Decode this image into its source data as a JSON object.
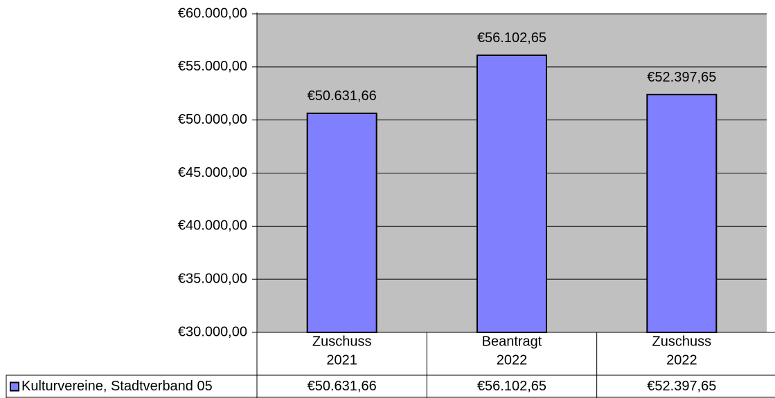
{
  "chart_data": {
    "type": "bar",
    "categories": [
      [
        "Zuschuss",
        "2021"
      ],
      [
        "Beantragt",
        "2022"
      ],
      [
        "Zuschuss",
        "2022"
      ]
    ],
    "series": [
      {
        "name": "Kulturvereine, Stadtverband 05",
        "values": [
          50631.66,
          56102.65,
          52397.65
        ],
        "value_labels": [
          "€50.631,66",
          "€56.102,65",
          "€52.397,65"
        ],
        "color": "#8080ff"
      }
    ],
    "ylim": [
      30000,
      60000
    ],
    "y_ticks": [
      30000,
      35000,
      40000,
      45000,
      50000,
      55000,
      60000
    ],
    "y_tick_labels": [
      "€30.000,00",
      "€35.000,00",
      "€40.000,00",
      "€45.000,00",
      "€50.000,00",
      "€55.000,00",
      "€60.000,00"
    ],
    "grid": true,
    "plot_background": "#c0c0c0",
    "legend": "data-table",
    "title": "",
    "xlabel": "",
    "ylabel": ""
  }
}
